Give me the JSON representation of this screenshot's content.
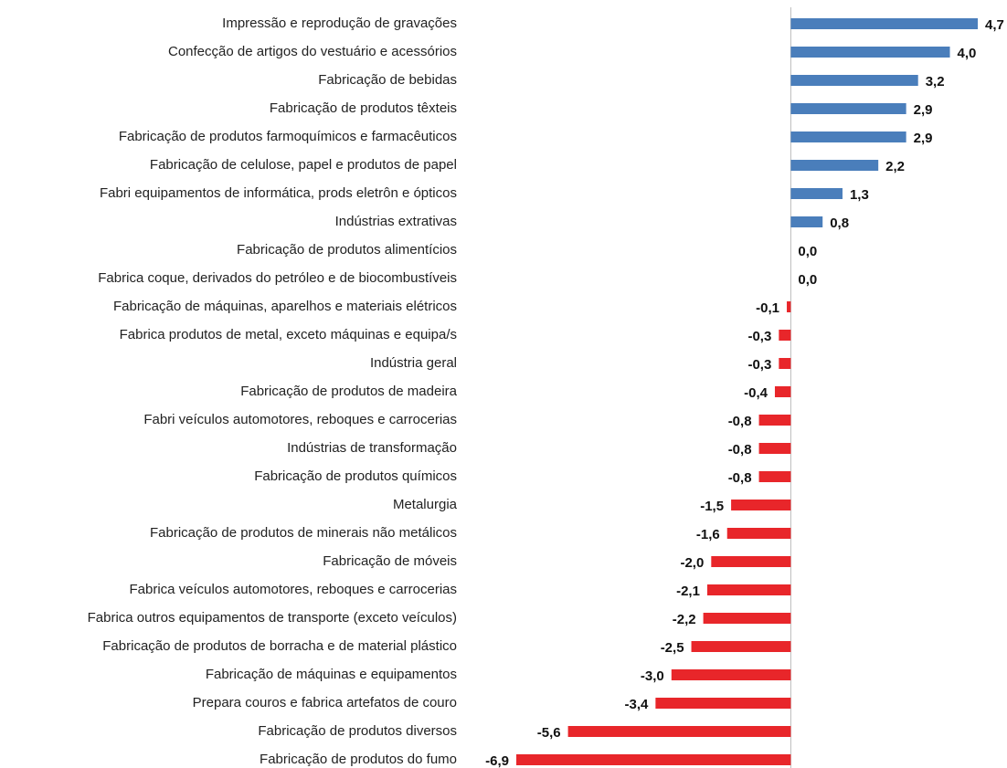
{
  "chart_data": {
    "type": "bar",
    "orientation": "horizontal",
    "categories": [
      "Impressão e reprodução de gravações",
      "Confecção de artigos do vestuário e acessórios",
      "Fabricação de bebidas",
      "Fabricação de produtos têxteis",
      "Fabricação de produtos farmoquímicos e farmacêuticos",
      "Fabricação de celulose, papel e produtos de papel",
      "Fabri equipamentos de informática, prods eletrôn e ópticos",
      "Indústrias extrativas",
      "Fabricação de produtos alimentícios",
      "Fabrica coque, derivados do petróleo e de biocombustíveis",
      "Fabricação de máquinas, aparelhos e materiais elétricos",
      "Fabrica produtos de metal, exceto máquinas e equipa/s",
      "Indústria geral",
      "Fabricação de produtos de madeira",
      "Fabri veículos automotores, reboques e carrocerias",
      "Indústrias de transformação",
      "Fabricação de produtos químicos",
      "Metalurgia",
      "Fabricação de produtos de minerais não metálicos",
      "Fabricação de móveis",
      "Fabrica veículos automotores, reboques e carrocerias ",
      "Fabrica outros equipamentos de transporte (exceto veículos)",
      "Fabricação de produtos de borracha e de material plástico",
      "Fabricação de máquinas e equipamentos",
      "Prepara couros e fabrica artefatos de couro",
      "Fabricação de produtos diversos",
      "Fabricação de produtos do fumo"
    ],
    "values": [
      4.7,
      4.0,
      3.2,
      2.9,
      2.9,
      2.2,
      1.3,
      0.8,
      0.0,
      0.0,
      -0.1,
      -0.3,
      -0.3,
      -0.4,
      -0.8,
      -0.8,
      -0.8,
      -1.5,
      -1.6,
      -2.0,
      -2.1,
      -2.2,
      -2.5,
      -3.0,
      -3.4,
      -5.6,
      -6.9
    ],
    "value_labels": [
      "4,7",
      "4,0",
      "3,2",
      "2,9",
      "2,9",
      "2,2",
      "1,3",
      "0,8",
      "0,0",
      "0,0",
      "-0,1",
      "-0,3",
      "-0,3",
      "-0,4",
      "-0,8",
      "-0,8",
      "-0,8",
      "-1,5",
      "-1,6",
      "-2,0",
      "-2,1",
      "-2,2",
      "-2,5",
      "-3,0",
      "-3,4",
      "-5,6",
      "-6,9"
    ],
    "color_positive": "#4a7ebb",
    "color_negative": "#e8262a"
  }
}
